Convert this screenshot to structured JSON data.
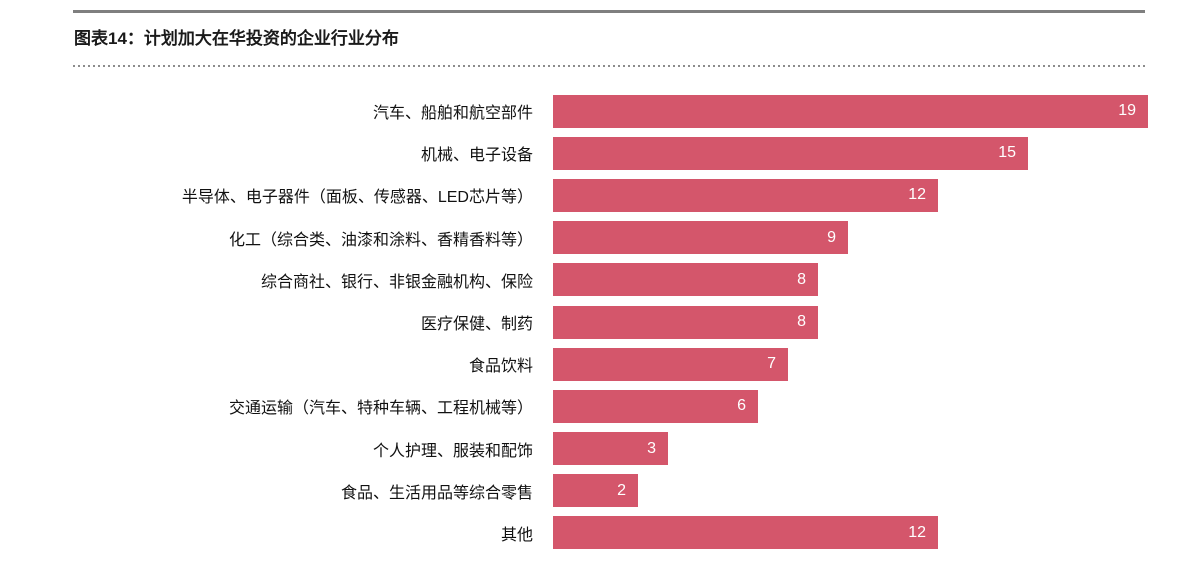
{
  "chart_data": {
    "type": "bar",
    "orientation": "horizontal",
    "title": "图表14：计划加大在华投资的企业行业分布",
    "categories": [
      "汽车、船舶和航空部件",
      "机械、电子设备",
      "半导体、电子器件（面板、传感器、LED芯片等）",
      "化工（综合类、油漆和涂料、香精香料等）",
      "综合商社、银行、非银金融机构、保险",
      "医疗保健、制药",
      "食品饮料",
      "交通运输（汽车、特种车辆、工程机械等）",
      "个人护理、服装和配饰",
      "食品、生活用品等综合零售",
      "其他"
    ],
    "values": [
      19,
      15,
      12,
      9,
      8,
      8,
      7,
      6,
      3,
      2,
      12
    ],
    "xlabel": "",
    "ylabel": "",
    "xlim": [
      0,
      19
    ],
    "grid": false,
    "legend": false,
    "value_label_position": "inside-end",
    "colors": {
      "bar": "#d4566b",
      "value_label": "#ffffff",
      "category_label": "#111111",
      "title": "#1a1a1a",
      "top_rule": "#7f7f7f",
      "dotted_rule": "#8c8c8c",
      "background": "#ffffff"
    }
  }
}
